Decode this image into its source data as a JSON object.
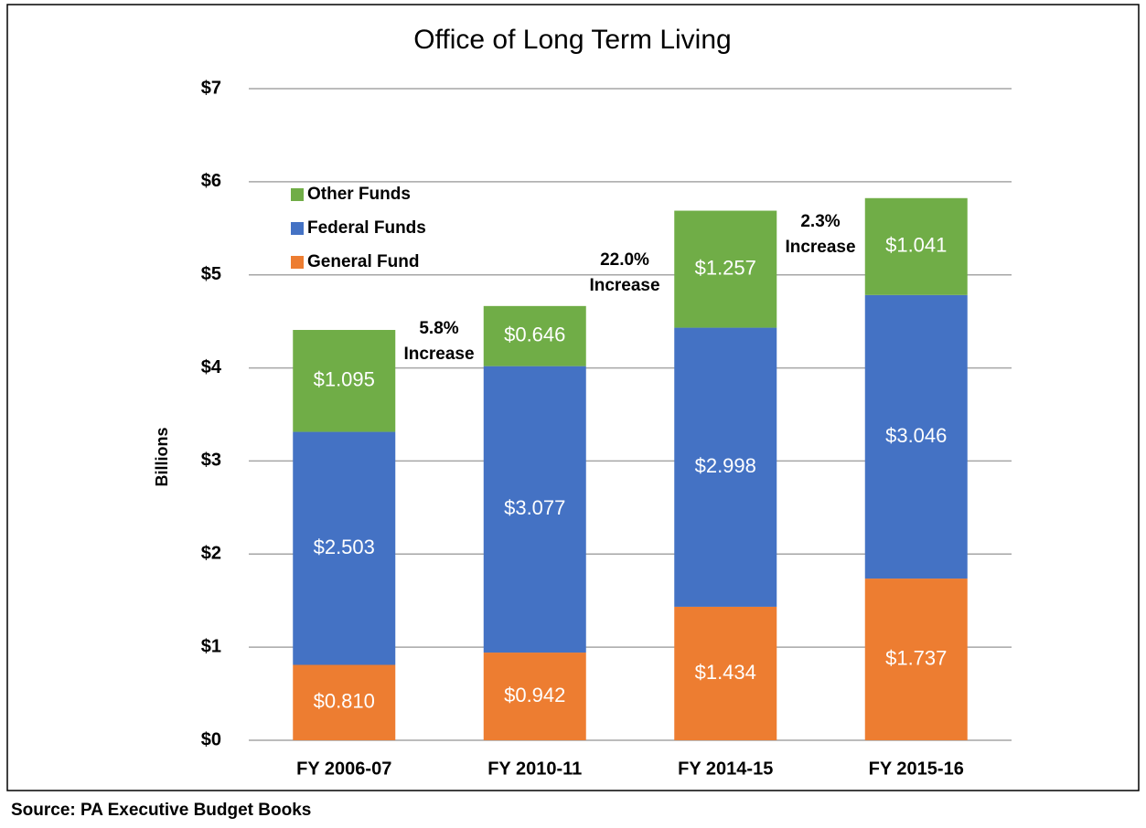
{
  "chart_data": {
    "type": "stacked_bar",
    "title": "Office of Long Term Living",
    "ylabel": "Billions",
    "source": "Source: PA Executive Budget Books",
    "categories": [
      "FY 2006-07",
      "FY 2010-11",
      "FY 2014-15",
      "FY 2015-16"
    ],
    "series": [
      {
        "name": "General Fund",
        "color": "#ed7d31",
        "values": [
          0.81,
          0.942,
          1.434,
          1.737
        ],
        "value_labels": [
          "$0.810",
          "$0.942",
          "$1.434",
          "$1.737"
        ]
      },
      {
        "name": "Federal Funds",
        "color": "#4472c4",
        "values": [
          2.503,
          3.077,
          2.998,
          3.046
        ],
        "value_labels": [
          "$2.503",
          "$3.077",
          "$2.998",
          "$3.046"
        ]
      },
      {
        "name": "Other Funds",
        "color": "#70ad47",
        "values": [
          1.095,
          0.646,
          1.257,
          1.041
        ],
        "value_labels": [
          "$1.095",
          "$0.646",
          "$1.257",
          "$1.041"
        ]
      }
    ],
    "annotations": [
      [
        "5.8%",
        "Increase"
      ],
      [
        "22.0%",
        "Increase"
      ],
      [
        "2.3%",
        "Increase"
      ]
    ],
    "ylim": [
      0,
      7
    ],
    "yticks": [
      {
        "value": 0,
        "label": "$0"
      },
      {
        "value": 1,
        "label": "$1"
      },
      {
        "value": 2,
        "label": "$2"
      },
      {
        "value": 3,
        "label": "$3"
      },
      {
        "value": 4,
        "label": "$4"
      },
      {
        "value": 5,
        "label": "$5"
      },
      {
        "value": 6,
        "label": "$6"
      },
      {
        "value": 7,
        "label": "$7"
      }
    ],
    "grid": true,
    "legend": "upper left"
  }
}
